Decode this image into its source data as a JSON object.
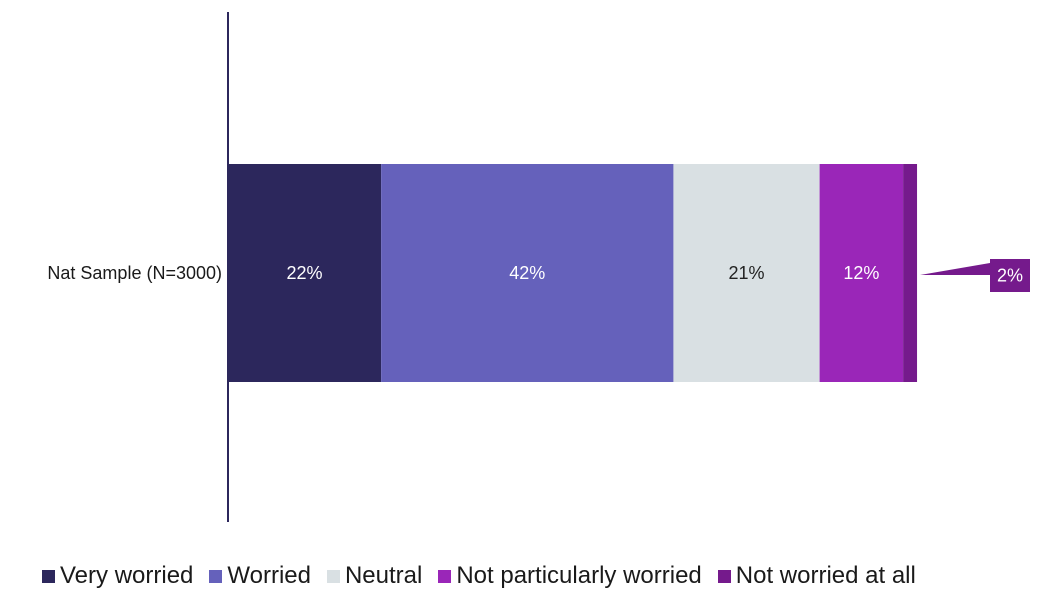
{
  "chart_data": {
    "type": "bar",
    "orientation": "horizontal",
    "stacked": true,
    "categories": [
      "Nat Sample (N=3000)"
    ],
    "series": [
      {
        "name": "Very worried",
        "values": [
          22
        ],
        "color": "#2c275c",
        "label": "22%",
        "label_color": "#ffffff"
      },
      {
        "name": "Worried",
        "values": [
          42
        ],
        "color": "#6561bb",
        "label": "42%",
        "label_color": "#ffffff"
      },
      {
        "name": "Neutral",
        "values": [
          21
        ],
        "color": "#d9e0e3",
        "label": "21%",
        "label_color": "#222222"
      },
      {
        "name": "Not particularly worried",
        "values": [
          12
        ],
        "color": "#9a26b8",
        "label": "12%",
        "label_color": "#ffffff"
      },
      {
        "name": "Not worried at all",
        "values": [
          2
        ],
        "color": "#751a8c",
        "label": "2%",
        "label_color": "#ffffff",
        "callout": true
      }
    ],
    "title": "",
    "xlabel": "",
    "ylabel": "",
    "legend_position": "bottom",
    "grid": false
  }
}
